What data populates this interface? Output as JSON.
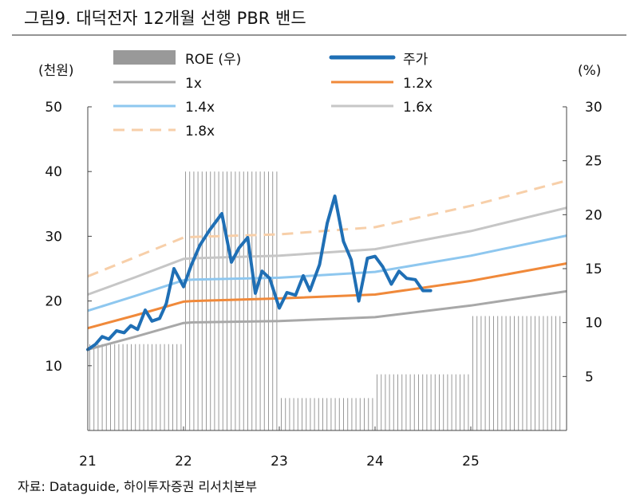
{
  "chart_data": {
    "type": "line",
    "title": "그림9. 대덕전자 12개월 선행 PBR 밴드",
    "left_unit": "(천원)",
    "right_unit": "(%)",
    "source": "자료: Dataguide, 하이투자증권 리서치본부",
    "x_ticks": [
      "21",
      "22",
      "23",
      "24",
      "25"
    ],
    "x_range": [
      21,
      26
    ],
    "y_left": {
      "min": 0,
      "max": 50,
      "ticks": [
        10,
        20,
        30,
        40,
        50
      ]
    },
    "y_right": {
      "min": 0,
      "max": 30,
      "ticks": [
        5,
        10,
        15,
        20,
        25,
        30
      ]
    },
    "legend": [
      "ROE (우)",
      "주가",
      "1x",
      "1.2x",
      "1.4x",
      "1.6x",
      "1.8x"
    ],
    "colors": {
      "roe": "#999999",
      "price": "#1f6fb5",
      "b1": "#a8a8a8",
      "b12": "#f0893a",
      "b14": "#8ec7ef",
      "b16": "#c6c6c6",
      "b18": "#f7cfa9"
    },
    "roe_bars": [
      {
        "x0": 21.0,
        "x1": 22.0,
        "v": 8.0
      },
      {
        "x0": 22.0,
        "x1": 23.0,
        "v": 24.0
      },
      {
        "x0": 23.0,
        "x1": 24.0,
        "v": 3.0
      },
      {
        "x0": 24.0,
        "x1": 25.0,
        "v": 5.2
      },
      {
        "x0": 25.0,
        "x1": 25.95,
        "v": 10.6
      }
    ],
    "bands": [
      {
        "name": "1x",
        "key": "b1",
        "dashed": false,
        "points": [
          [
            21.0,
            12.5
          ],
          [
            21.5,
            14.5
          ],
          [
            22.0,
            16.6
          ],
          [
            22.1,
            16.7
          ],
          [
            23.0,
            16.9
          ],
          [
            24.0,
            17.5
          ],
          [
            25.0,
            19.3
          ],
          [
            26.0,
            21.5
          ]
        ]
      },
      {
        "name": "1.2x",
        "key": "b12",
        "dashed": false,
        "points": [
          [
            21.0,
            15.8
          ],
          [
            21.5,
            17.8
          ],
          [
            22.0,
            19.9
          ],
          [
            22.1,
            20.0
          ],
          [
            23.0,
            20.4
          ],
          [
            24.0,
            21.0
          ],
          [
            25.0,
            23.1
          ],
          [
            26.0,
            25.8
          ]
        ]
      },
      {
        "name": "1.4x",
        "key": "b14",
        "dashed": false,
        "points": [
          [
            21.0,
            18.5
          ],
          [
            21.5,
            20.8
          ],
          [
            22.0,
            23.2
          ],
          [
            22.1,
            23.3
          ],
          [
            23.0,
            23.6
          ],
          [
            24.0,
            24.5
          ],
          [
            25.0,
            27.0
          ],
          [
            26.0,
            30.1
          ]
        ]
      },
      {
        "name": "1.6x",
        "key": "b16",
        "dashed": false,
        "points": [
          [
            21.0,
            21.0
          ],
          [
            21.5,
            23.7
          ],
          [
            22.0,
            26.5
          ],
          [
            22.1,
            26.6
          ],
          [
            23.0,
            27.0
          ],
          [
            24.0,
            28.0
          ],
          [
            25.0,
            30.8
          ],
          [
            26.0,
            34.4
          ]
        ]
      },
      {
        "name": "1.8x",
        "key": "b18",
        "dashed": true,
        "points": [
          [
            21.0,
            23.8
          ],
          [
            21.5,
            26.8
          ],
          [
            22.0,
            29.8
          ],
          [
            22.1,
            29.9
          ],
          [
            23.0,
            30.3
          ],
          [
            24.0,
            31.4
          ],
          [
            25.0,
            34.7
          ],
          [
            26.0,
            38.6
          ]
        ]
      }
    ],
    "price": [
      [
        21.0,
        12.5
      ],
      [
        21.08,
        13.3
      ],
      [
        21.15,
        14.5
      ],
      [
        21.22,
        14.1
      ],
      [
        21.3,
        15.4
      ],
      [
        21.38,
        15.1
      ],
      [
        21.45,
        16.2
      ],
      [
        21.52,
        15.6
      ],
      [
        21.6,
        18.6
      ],
      [
        21.67,
        16.9
      ],
      [
        21.75,
        17.3
      ],
      [
        21.82,
        19.6
      ],
      [
        21.9,
        25.0
      ],
      [
        22.0,
        22.2
      ],
      [
        22.08,
        25.5
      ],
      [
        22.17,
        28.6
      ],
      [
        22.27,
        30.9
      ],
      [
        22.4,
        33.5
      ],
      [
        22.5,
        26.0
      ],
      [
        22.58,
        28.2
      ],
      [
        22.67,
        29.8
      ],
      [
        22.75,
        21.2
      ],
      [
        22.82,
        24.6
      ],
      [
        22.9,
        23.5
      ],
      [
        23.0,
        18.9
      ],
      [
        23.08,
        21.3
      ],
      [
        23.17,
        20.9
      ],
      [
        23.25,
        23.9
      ],
      [
        23.32,
        21.6
      ],
      [
        23.42,
        25.6
      ],
      [
        23.5,
        32.0
      ],
      [
        23.58,
        36.2
      ],
      [
        23.67,
        29.2
      ],
      [
        23.75,
        26.4
      ],
      [
        23.83,
        20.0
      ],
      [
        23.92,
        26.6
      ],
      [
        24.0,
        26.9
      ],
      [
        24.08,
        25.3
      ],
      [
        24.17,
        22.6
      ],
      [
        24.25,
        24.6
      ],
      [
        24.33,
        23.5
      ],
      [
        24.42,
        23.3
      ],
      [
        24.5,
        21.6
      ],
      [
        24.58,
        21.6
      ]
    ]
  }
}
